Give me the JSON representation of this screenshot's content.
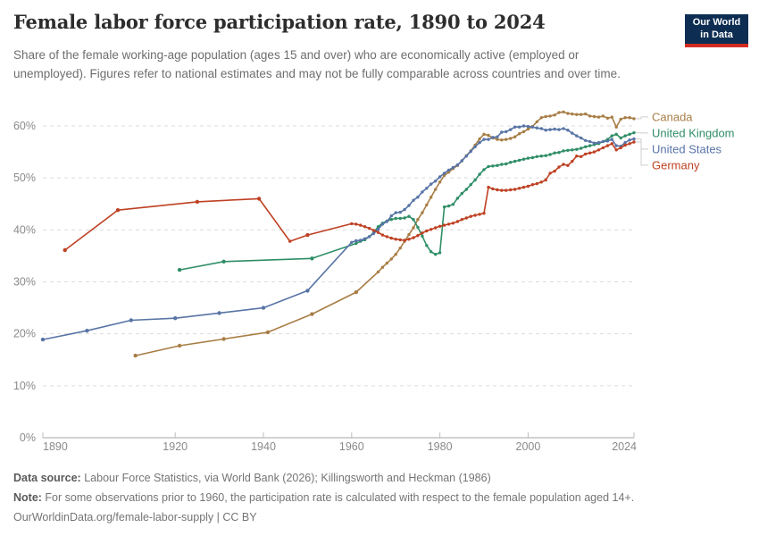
{
  "header": {
    "title": "Female labor force participation rate, 1890 to 2024",
    "subtitle": "Share of the female working-age population (ages 15 and over) who are economically active (employed or unemployed). Figures refer to national estimates and may not be fully comparable across countries and over time.",
    "logo": {
      "line1": "Our World",
      "line2": "in Data",
      "bg_color": "#0d2e52",
      "accent_color": "#d42b21"
    }
  },
  "footer": {
    "source_label": "Data source:",
    "source_text": " Labour Force Statistics, via World Bank (2026); Killingsworth and Heckman (1986)",
    "note_label": "Note:",
    "note_text": " For some observations prior to 1960, the participation rate is calculated with respect to the female population aged 14+.",
    "citation": "OurWorldinData.org/female-labor-supply | CC BY"
  },
  "chart_data": {
    "type": "line",
    "title": "Female labor force participation rate, 1890 to 2024",
    "xlabel": "",
    "ylabel": "",
    "xlim": [
      1890,
      2024
    ],
    "ylim": [
      0,
      60
    ],
    "grid": "horizontal-dashed",
    "legend_position": "right-of-line-endpoints",
    "x_tick_labels": [
      "1890",
      "1920",
      "1940",
      "1960",
      "1980",
      "2000",
      "2024"
    ],
    "x_ticks": [
      1890,
      1920,
      1940,
      1960,
      1980,
      2000,
      2024
    ],
    "y_tick_labels": [
      "0%",
      "10%",
      "20%",
      "30%",
      "40%",
      "50%",
      "60%"
    ],
    "y_ticks": [
      0,
      10,
      20,
      30,
      40,
      50,
      60
    ],
    "series": [
      {
        "name": "Canada",
        "color": "#a87e46",
        "points": [
          [
            1911,
            15.8
          ],
          [
            1921,
            17.7
          ],
          [
            1931,
            19
          ],
          [
            1941,
            20.3
          ],
          [
            1951,
            23.8
          ],
          [
            1961,
            28
          ],
          [
            1966,
            31.9
          ],
          [
            1967,
            32.8
          ],
          [
            1968,
            33.6
          ],
          [
            1969,
            34.4
          ],
          [
            1970,
            35.3
          ],
          [
            1971,
            36.5
          ],
          [
            1972,
            37.8
          ],
          [
            1973,
            39.1
          ],
          [
            1974,
            40.4
          ],
          [
            1975,
            42
          ],
          [
            1976,
            43.3
          ],
          [
            1977,
            44.8
          ],
          [
            1978,
            46.3
          ],
          [
            1979,
            47.8
          ],
          [
            1980,
            49.2
          ],
          [
            1981,
            50.5
          ],
          [
            1982,
            51.1
          ],
          [
            1983,
            51.8
          ],
          [
            1984,
            52.4
          ],
          [
            1985,
            53.3
          ],
          [
            1986,
            54.3
          ],
          [
            1987,
            55.2
          ],
          [
            1988,
            56.3
          ],
          [
            1989,
            57.5
          ],
          [
            1990,
            58.4
          ],
          [
            1991,
            58.2
          ],
          [
            1992,
            57.7
          ],
          [
            1993,
            57.4
          ],
          [
            1994,
            57.3
          ],
          [
            1995,
            57.4
          ],
          [
            1996,
            57.6
          ],
          [
            1997,
            57.9
          ],
          [
            1998,
            58.5
          ],
          [
            1999,
            58.9
          ],
          [
            2000,
            59.4
          ],
          [
            2001,
            59.9
          ],
          [
            2002,
            60.8
          ],
          [
            2003,
            61.6
          ],
          [
            2004,
            61.8
          ],
          [
            2005,
            61.9
          ],
          [
            2006,
            62.1
          ],
          [
            2007,
            62.6
          ],
          [
            2008,
            62.7
          ],
          [
            2009,
            62.4
          ],
          [
            2010,
            62.3
          ],
          [
            2011,
            62.2
          ],
          [
            2012,
            62.2
          ],
          [
            2013,
            62.3
          ],
          [
            2014,
            61.9
          ],
          [
            2015,
            61.8
          ],
          [
            2016,
            61.7
          ],
          [
            2017,
            61.9
          ],
          [
            2018,
            61.5
          ],
          [
            2019,
            61.7
          ],
          [
            2020,
            59.8
          ],
          [
            2021,
            61.3
          ],
          [
            2022,
            61.6
          ],
          [
            2023,
            61.6
          ],
          [
            2024,
            61.4
          ]
        ]
      },
      {
        "name": "United Kingdom",
        "color": "#2f8e67",
        "points": [
          [
            1921,
            32.3
          ],
          [
            1931,
            33.9
          ],
          [
            1951,
            34.5
          ],
          [
            1961,
            37.4
          ],
          [
            1962,
            37.8
          ],
          [
            1963,
            38.1
          ],
          [
            1964,
            38.7
          ],
          [
            1965,
            39.5
          ],
          [
            1966,
            40.6
          ],
          [
            1967,
            41.3
          ],
          [
            1968,
            41.7
          ],
          [
            1969,
            42
          ],
          [
            1970,
            42.2
          ],
          [
            1971,
            42.2
          ],
          [
            1972,
            42.3
          ],
          [
            1973,
            42.6
          ],
          [
            1974,
            42
          ],
          [
            1975,
            40.5
          ],
          [
            1976,
            38.8
          ],
          [
            1977,
            37
          ],
          [
            1978,
            35.8
          ],
          [
            1979,
            35.3
          ],
          [
            1980,
            35.6
          ],
          [
            1981,
            44.4
          ],
          [
            1982,
            44.6
          ],
          [
            1983,
            44.9
          ],
          [
            1984,
            46.1
          ],
          [
            1985,
            47
          ],
          [
            1986,
            47.8
          ],
          [
            1987,
            48.7
          ],
          [
            1988,
            49.6
          ],
          [
            1989,
            50.7
          ],
          [
            1990,
            51.6
          ],
          [
            1991,
            52.2
          ],
          [
            1992,
            52.3
          ],
          [
            1993,
            52.4
          ],
          [
            1994,
            52.6
          ],
          [
            1995,
            52.7
          ],
          [
            1996,
            53
          ],
          [
            1997,
            53.2
          ],
          [
            1998,
            53.4
          ],
          [
            1999,
            53.6
          ],
          [
            2000,
            53.8
          ],
          [
            2001,
            53.9
          ],
          [
            2002,
            54.1
          ],
          [
            2003,
            54.2
          ],
          [
            2004,
            54.3
          ],
          [
            2005,
            54.5
          ],
          [
            2006,
            54.8
          ],
          [
            2007,
            54.9
          ],
          [
            2008,
            55.2
          ],
          [
            2009,
            55.3
          ],
          [
            2010,
            55.4
          ],
          [
            2011,
            55.5
          ],
          [
            2012,
            55.7
          ],
          [
            2013,
            56
          ],
          [
            2014,
            56.2
          ],
          [
            2015,
            56.4
          ],
          [
            2016,
            56.6
          ],
          [
            2017,
            57
          ],
          [
            2018,
            57.4
          ],
          [
            2019,
            58.1
          ],
          [
            2020,
            58.4
          ],
          [
            2021,
            57.7
          ],
          [
            2022,
            58.1
          ],
          [
            2023,
            58.4
          ],
          [
            2024,
            58.7
          ]
        ]
      },
      {
        "name": "United States",
        "color": "#5874a6",
        "points": [
          [
            1890,
            18.9
          ],
          [
            1900,
            20.6
          ],
          [
            1910,
            22.6
          ],
          [
            1920,
            23
          ],
          [
            1930,
            24
          ],
          [
            1940,
            25
          ],
          [
            1950,
            28.3
          ],
          [
            1960,
            37.6
          ],
          [
            1961,
            37.9
          ],
          [
            1962,
            38
          ],
          [
            1963,
            38.3
          ],
          [
            1964,
            38.7
          ],
          [
            1965,
            39.3
          ],
          [
            1966,
            40.1
          ],
          [
            1967,
            41.1
          ],
          [
            1968,
            41.6
          ],
          [
            1969,
            42.7
          ],
          [
            1970,
            43.3
          ],
          [
            1971,
            43.4
          ],
          [
            1972,
            43.9
          ],
          [
            1973,
            44.7
          ],
          [
            1974,
            45.7
          ],
          [
            1975,
            46.3
          ],
          [
            1976,
            47.3
          ],
          [
            1977,
            48
          ],
          [
            1978,
            48.8
          ],
          [
            1979,
            49.4
          ],
          [
            1980,
            50.2
          ],
          [
            1981,
            50.9
          ],
          [
            1982,
            51.5
          ],
          [
            1983,
            52
          ],
          [
            1984,
            52.5
          ],
          [
            1985,
            53.3
          ],
          [
            1986,
            54.2
          ],
          [
            1987,
            55.1
          ],
          [
            1988,
            56
          ],
          [
            1989,
            56.8
          ],
          [
            1990,
            57.4
          ],
          [
            1991,
            57.4
          ],
          [
            1992,
            57.8
          ],
          [
            1993,
            57.9
          ],
          [
            1994,
            58.8
          ],
          [
            1995,
            58.9
          ],
          [
            1996,
            59.3
          ],
          [
            1997,
            59.8
          ],
          [
            1998,
            59.8
          ],
          [
            1999,
            60
          ],
          [
            2000,
            59.9
          ],
          [
            2001,
            59.8
          ],
          [
            2002,
            59.6
          ],
          [
            2003,
            59.5
          ],
          [
            2004,
            59.2
          ],
          [
            2005,
            59.3
          ],
          [
            2006,
            59.4
          ],
          [
            2007,
            59.3
          ],
          [
            2008,
            59.5
          ],
          [
            2009,
            59.2
          ],
          [
            2010,
            58.6
          ],
          [
            2011,
            58.1
          ],
          [
            2012,
            57.7
          ],
          [
            2013,
            57.2
          ],
          [
            2014,
            57
          ],
          [
            2015,
            56.7
          ],
          [
            2016,
            56.8
          ],
          [
            2017,
            57
          ],
          [
            2018,
            57.1
          ],
          [
            2019,
            57.4
          ],
          [
            2020,
            56.2
          ],
          [
            2021,
            56.1
          ],
          [
            2022,
            56.8
          ],
          [
            2023,
            57.3
          ],
          [
            2024,
            57.5
          ]
        ]
      },
      {
        "name": "Germany",
        "color": "#be4123",
        "points": [
          [
            1895,
            36.1
          ],
          [
            1907,
            43.8
          ],
          [
            1925,
            45.4
          ],
          [
            1939,
            46
          ],
          [
            1946,
            37.8
          ],
          [
            1950,
            39
          ],
          [
            1960,
            41.2
          ],
          [
            1961,
            41.1
          ],
          [
            1962,
            40.9
          ],
          [
            1963,
            40.6
          ],
          [
            1964,
            40.3
          ],
          [
            1965,
            39.9
          ],
          [
            1966,
            39.5
          ],
          [
            1967,
            39
          ],
          [
            1968,
            38.7
          ],
          [
            1969,
            38.4
          ],
          [
            1970,
            38.2
          ],
          [
            1971,
            38.1
          ],
          [
            1972,
            38
          ],
          [
            1973,
            38.2
          ],
          [
            1974,
            38.5
          ],
          [
            1975,
            38.9
          ],
          [
            1976,
            39.4
          ],
          [
            1977,
            39.8
          ],
          [
            1978,
            40.1
          ],
          [
            1979,
            40.4
          ],
          [
            1980,
            40.7
          ],
          [
            1981,
            40.9
          ],
          [
            1982,
            41.1
          ],
          [
            1983,
            41.3
          ],
          [
            1984,
            41.6
          ],
          [
            1985,
            42
          ],
          [
            1986,
            42.3
          ],
          [
            1987,
            42.6
          ],
          [
            1988,
            42.8
          ],
          [
            1989,
            43
          ],
          [
            1990,
            43.2
          ],
          [
            1991,
            48.2
          ],
          [
            1992,
            47.9
          ],
          [
            1993,
            47.7
          ],
          [
            1994,
            47.6
          ],
          [
            1995,
            47.6
          ],
          [
            1996,
            47.7
          ],
          [
            1997,
            47.8
          ],
          [
            1998,
            48
          ],
          [
            1999,
            48.2
          ],
          [
            2000,
            48.4
          ],
          [
            2001,
            48.7
          ],
          [
            2002,
            48.9
          ],
          [
            2003,
            49.2
          ],
          [
            2004,
            49.6
          ],
          [
            2005,
            50.9
          ],
          [
            2006,
            51.3
          ],
          [
            2007,
            52.1
          ],
          [
            2008,
            52.6
          ],
          [
            2009,
            52.4
          ],
          [
            2010,
            53.2
          ],
          [
            2011,
            54.2
          ],
          [
            2012,
            54.1
          ],
          [
            2013,
            54.6
          ],
          [
            2014,
            54.8
          ],
          [
            2015,
            55
          ],
          [
            2016,
            55.4
          ],
          [
            2017,
            55.8
          ],
          [
            2018,
            56.2
          ],
          [
            2019,
            56.6
          ],
          [
            2020,
            55.4
          ],
          [
            2021,
            55.8
          ],
          [
            2022,
            56.3
          ],
          [
            2023,
            56.6
          ],
          [
            2024,
            56.9
          ]
        ]
      }
    ]
  }
}
